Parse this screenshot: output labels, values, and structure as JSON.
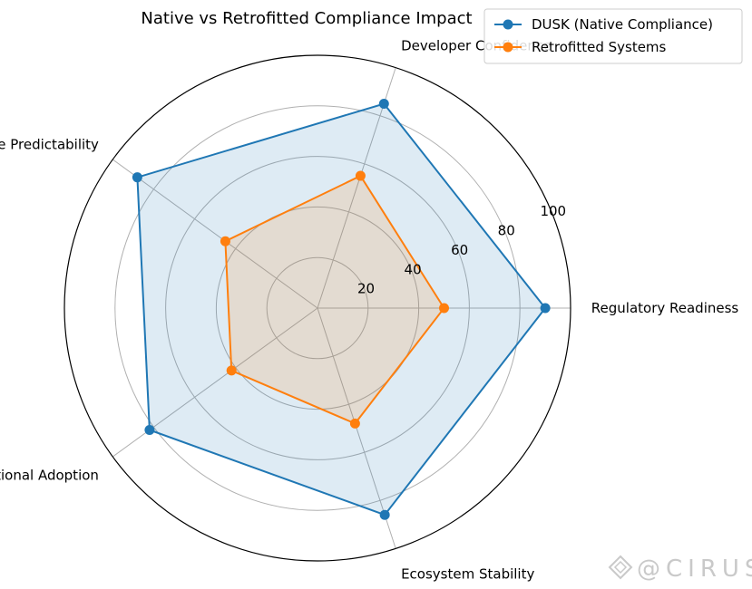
{
  "chart_data": {
    "type": "radar",
    "title": "Native vs Retrofitted Compliance Impact",
    "axes": [
      "Regulatory Readiness",
      "Developer Confidence",
      "Upgrade Predictability",
      "Institutional Adoption",
      "Ecosystem Stability"
    ],
    "rlim": [
      0,
      100
    ],
    "rticks": [
      20,
      40,
      60,
      80,
      100
    ],
    "grid": true,
    "legend_position": "top-right",
    "series": [
      {
        "name": "DUSK (Native Compliance)",
        "values": [
          90,
          85,
          88,
          82,
          86
        ],
        "color": "#1f77b4"
      },
      {
        "name": "Retrofitted Systems",
        "values": [
          50,
          55,
          45,
          42,
          48
        ],
        "color": "#ff7f0e"
      }
    ]
  },
  "watermark": {
    "text": "@CIRUS"
  }
}
